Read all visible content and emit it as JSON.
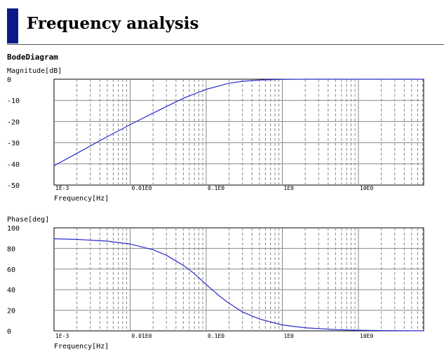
{
  "page": {
    "title": "Frequency analysis",
    "section": "BodeDiagram"
  },
  "colors": {
    "accent_bar": "#0b1a8a",
    "curve": "#2a2ad0",
    "grid": "#888888"
  },
  "chart_data": [
    {
      "type": "line",
      "title": "",
      "ylabel": "Magnitude[dB]",
      "xlabel": "Frequency[Hz]",
      "xscale": "log",
      "xlim": [
        0.001,
        70
      ],
      "ylim": [
        -50,
        0
      ],
      "grid": true,
      "legend": "none",
      "x_ticks": [
        "1E-3",
        "0.01E0",
        "0.1E0",
        "1E0",
        "10E0"
      ],
      "y_ticks": [
        "0",
        "-10",
        "-20",
        "-30",
        "-40",
        "-50"
      ],
      "series": [
        {
          "x": [
            0.001,
            0.002,
            0.005,
            0.01,
            0.02,
            0.05,
            0.1,
            0.2,
            0.3,
            0.5,
            1,
            2,
            5,
            10,
            20,
            50,
            70
          ],
          "y": [
            -40.9,
            -35.0,
            -27.2,
            -21.5,
            -16.0,
            -9.0,
            -4.8,
            -1.9,
            -1.0,
            -0.4,
            -0.1,
            0,
            0,
            0,
            0,
            0,
            0
          ]
        }
      ]
    },
    {
      "type": "line",
      "title": "",
      "ylabel": "Phase[deg]",
      "xlabel": "Frequency[Hz]",
      "xscale": "log",
      "xlim": [
        0.001,
        70
      ],
      "ylim": [
        0,
        100
      ],
      "grid": true,
      "legend": "none",
      "x_ticks": [
        "1E-3",
        "0.01E0",
        "0.1E0",
        "1E0",
        "10E0"
      ],
      "y_ticks": [
        "100",
        "80",
        "60",
        "40",
        "20",
        "0"
      ],
      "series": [
        {
          "x": [
            0.001,
            0.002,
            0.005,
            0.01,
            0.02,
            0.03,
            0.05,
            0.07,
            0.1,
            0.15,
            0.2,
            0.3,
            0.5,
            1,
            2,
            5,
            10,
            20,
            50,
            70
          ],
          "y": [
            89.4,
            88.8,
            87.1,
            84.3,
            78.7,
            73.3,
            63.6,
            55.5,
            45.0,
            33.7,
            26.7,
            18.3,
            11.5,
            5.7,
            3.0,
            1.2,
            0.6,
            0.3,
            0.1,
            0.1
          ]
        }
      ]
    }
  ]
}
